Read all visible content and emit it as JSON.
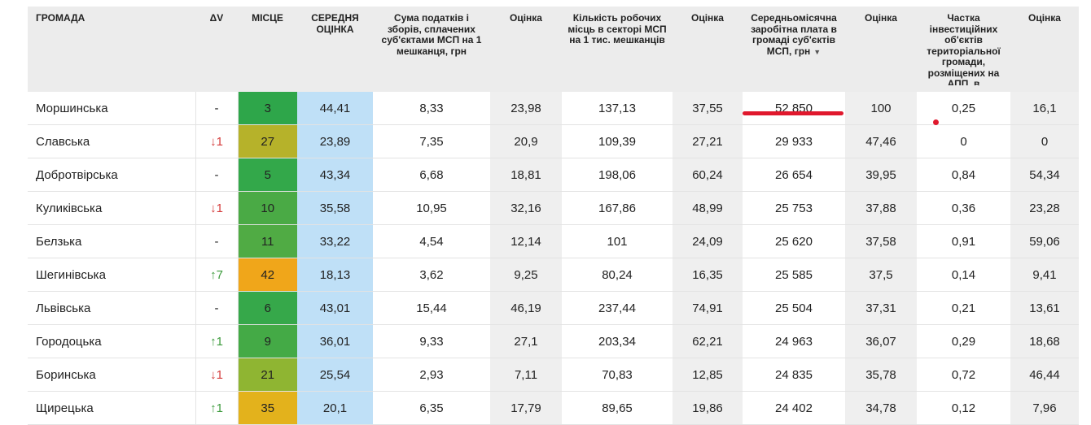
{
  "headers": {
    "name": "ГРОМАДА",
    "dv": "ΔV",
    "place": "МІСЦЕ",
    "avg": "СЕРЕДНЯ ОЦІНКА",
    "tax": "Сума податків і зборів, сплачених суб'єктами МСП на 1 мешканця, грн",
    "score1": "Оцінка",
    "jobs": "Кількість робочих місць в секторі МСП на 1 тис. мешканців",
    "score2": "Оцінка",
    "salary": "Середньомісячна заробітна плата в громаді суб'єктів МСП, грн",
    "salary_sort_icon": "caret-down",
    "score3": "Оцінка",
    "share": "Частка інвестиційних об'єктів територіальної громади, розміщених на АПП, в",
    "score4": "Оцінка"
  },
  "colors": {
    "header_bg": "#ececec",
    "avg_bg": "#bfe0f7",
    "grey_col": "#efefef",
    "up": "#3a9a3a",
    "down": "#d43a3a",
    "annotation_red": "#e0182d"
  },
  "rows": [
    {
      "name": "Моршинська",
      "dv": "-",
      "dv_dir": "none",
      "place": "3",
      "place_color": "#2ea64a",
      "avg": "44,41",
      "tax": "8,33",
      "score1": "23,98",
      "jobs": "137,13",
      "score2": "37,55",
      "salary": "52 850",
      "score3": "100",
      "share": "0,25",
      "score4": "16,1"
    },
    {
      "name": "Славська",
      "dv": "↓1",
      "dv_dir": "down",
      "place": "27",
      "place_color": "#b6b22a",
      "avg": "23,89",
      "tax": "7,35",
      "score1": "20,9",
      "jobs": "109,39",
      "score2": "27,21",
      "salary": "29 933",
      "score3": "47,46",
      "share": "0",
      "score4": "0"
    },
    {
      "name": "Добротвірська",
      "dv": "-",
      "dv_dir": "none",
      "place": "5",
      "place_color": "#33a84a",
      "avg": "43,34",
      "tax": "6,68",
      "score1": "18,81",
      "jobs": "198,06",
      "score2": "60,24",
      "salary": "26 654",
      "score3": "39,95",
      "share": "0,84",
      "score4": "54,34"
    },
    {
      "name": "Куликівська",
      "dv": "↓1",
      "dv_dir": "down",
      "place": "10",
      "place_color": "#4aaa45",
      "avg": "35,58",
      "tax": "10,95",
      "score1": "32,16",
      "jobs": "167,86",
      "score2": "48,99",
      "salary": "25 753",
      "score3": "37,88",
      "share": "0,36",
      "score4": "23,28"
    },
    {
      "name": "Белзька",
      "dv": "-",
      "dv_dir": "none",
      "place": "11",
      "place_color": "#50ab44",
      "avg": "33,22",
      "tax": "4,54",
      "score1": "12,14",
      "jobs": "101",
      "score2": "24,09",
      "salary": "25 620",
      "score3": "37,58",
      "share": "0,91",
      "score4": "59,06"
    },
    {
      "name": "Шегинівська",
      "dv": "↑7",
      "dv_dir": "up",
      "place": "42",
      "place_color": "#f0a61a",
      "avg": "18,13",
      "tax": "3,62",
      "score1": "9,25",
      "jobs": "80,24",
      "score2": "16,35",
      "salary": "25 585",
      "score3": "37,5",
      "share": "0,14",
      "score4": "9,41"
    },
    {
      "name": "Львівська",
      "dv": "-",
      "dv_dir": "none",
      "place": "6",
      "place_color": "#36a84a",
      "avg": "43,01",
      "tax": "15,44",
      "score1": "46,19",
      "jobs": "237,44",
      "score2": "74,91",
      "salary": "25 504",
      "score3": "37,31",
      "share": "0,21",
      "score4": "13,61"
    },
    {
      "name": "Городоцька",
      "dv": "↑1",
      "dv_dir": "up",
      "place": "9",
      "place_color": "#44aa46",
      "avg": "36,01",
      "tax": "9,33",
      "score1": "27,1",
      "jobs": "203,34",
      "score2": "62,21",
      "salary": "24 963",
      "score3": "36,07",
      "share": "0,29",
      "score4": "18,68"
    },
    {
      "name": "Боринська",
      "dv": "↓1",
      "dv_dir": "down",
      "place": "21",
      "place_color": "#8fb532",
      "avg": "25,54",
      "tax": "2,93",
      "score1": "7,11",
      "jobs": "70,83",
      "score2": "12,85",
      "salary": "24 835",
      "score3": "35,78",
      "share": "0,72",
      "score4": "46,44"
    },
    {
      "name": "Щирецька",
      "dv": "↑1",
      "dv_dir": "up",
      "place": "35",
      "place_color": "#e3b21c",
      "avg": "20,1",
      "tax": "6,35",
      "score1": "17,79",
      "jobs": "89,65",
      "score2": "19,86",
      "salary": "24 402",
      "score3": "34,78",
      "share": "0,12",
      "score4": "7,96"
    }
  ]
}
